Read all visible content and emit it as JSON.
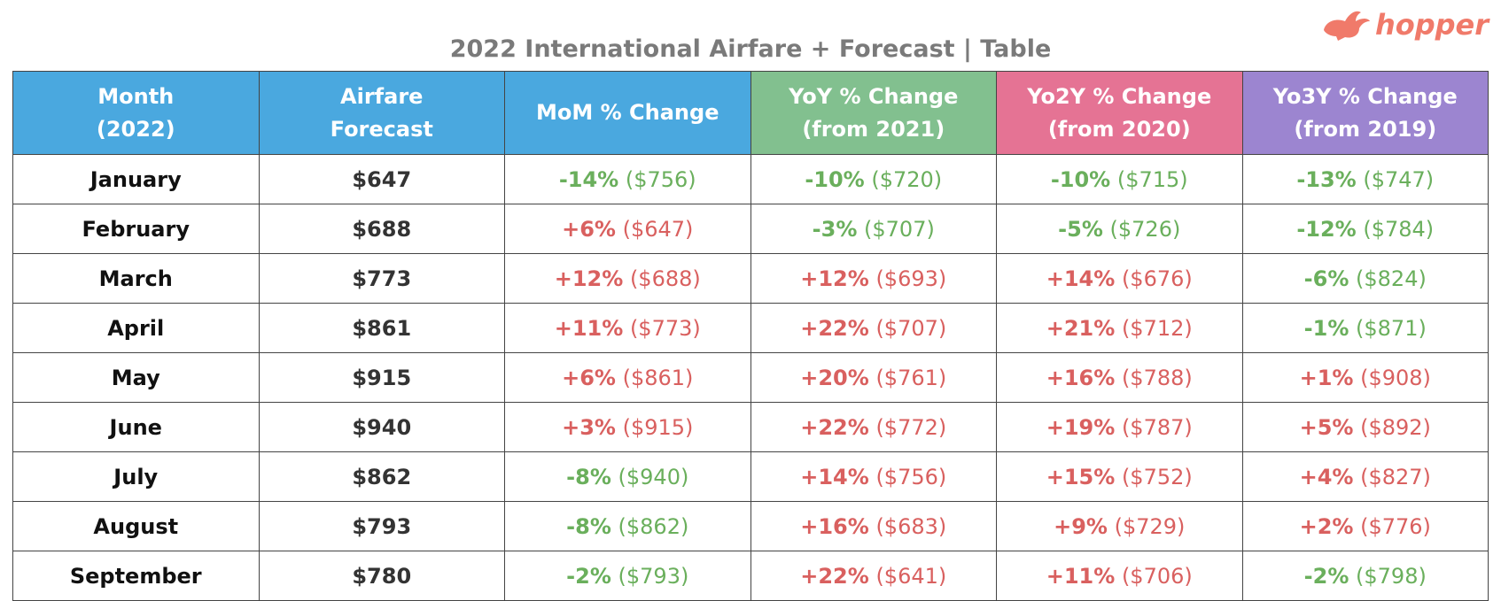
{
  "header": {
    "title": "2022 International Airfare + Forecast | Table",
    "logo": "hopper"
  },
  "table": {
    "columns": [
      {
        "lines": [
          "Month",
          "(2022)"
        ],
        "color": "#4aa8df"
      },
      {
        "lines": [
          "Airfare",
          "Forecast"
        ],
        "color": "#4aa8df"
      },
      {
        "lines": [
          "MoM % Change"
        ],
        "color": "#4aa8df"
      },
      {
        "lines": [
          "YoY % Change",
          "(from 2021)"
        ],
        "color": "#82c08f"
      },
      {
        "lines": [
          "Yo2Y % Change",
          "(from 2020)"
        ],
        "color": "#e57394"
      },
      {
        "lines": [
          "Yo3Y % Change",
          "(from 2019)"
        ],
        "color": "#9c85d0"
      }
    ],
    "rows": [
      {
        "month": "January",
        "forecast": "$647",
        "changes": [
          {
            "change": "-14%",
            "previous": "($756)"
          },
          {
            "change": "-10%",
            "previous": "($720)"
          },
          {
            "change": "-10%",
            "previous": "($715)"
          },
          {
            "change": "-13%",
            "previous": "($747)"
          }
        ]
      },
      {
        "month": "February",
        "forecast": "$688",
        "changes": [
          {
            "change": "+6%",
            "previous": "($647)"
          },
          {
            "change": "-3%",
            "previous": "($707)"
          },
          {
            "change": "-5%",
            "previous": "($726)"
          },
          {
            "change": "-12%",
            "previous": "($784)"
          }
        ]
      },
      {
        "month": "March",
        "forecast": "$773",
        "changes": [
          {
            "change": "+12%",
            "previous": "($688)"
          },
          {
            "change": "+12%",
            "previous": "($693)"
          },
          {
            "change": "+14%",
            "previous": "($676)"
          },
          {
            "change": "-6%",
            "previous": "($824)"
          }
        ]
      },
      {
        "month": "April",
        "forecast": "$861",
        "changes": [
          {
            "change": "+11%",
            "previous": "($773)"
          },
          {
            "change": "+22%",
            "previous": "($707)"
          },
          {
            "change": "+21%",
            "previous": "($712)"
          },
          {
            "change": "-1%",
            "previous": "($871)"
          }
        ]
      },
      {
        "month": "May",
        "forecast": "$915",
        "changes": [
          {
            "change": "+6%",
            "previous": "($861)"
          },
          {
            "change": "+20%",
            "previous": "($761)"
          },
          {
            "change": "+16%",
            "previous": "($788)"
          },
          {
            "change": "+1%",
            "previous": "($908)"
          }
        ]
      },
      {
        "month": "June",
        "forecast": "$940",
        "changes": [
          {
            "change": "+3%",
            "previous": "($915)"
          },
          {
            "change": "+22%",
            "previous": "($772)"
          },
          {
            "change": "+19%",
            "previous": "($787)"
          },
          {
            "change": "+5%",
            "previous": "($892)"
          }
        ]
      },
      {
        "month": "July",
        "forecast": "$862",
        "changes": [
          {
            "change": "-8%",
            "previous": "($940)"
          },
          {
            "change": "+14%",
            "previous": "($756)"
          },
          {
            "change": "+15%",
            "previous": "($752)"
          },
          {
            "change": "+4%",
            "previous": "($827)"
          }
        ]
      },
      {
        "month": "August",
        "forecast": "$793",
        "changes": [
          {
            "change": "-8%",
            "previous": "($862)"
          },
          {
            "change": "+16%",
            "previous": "($683)"
          },
          {
            "change": "+9%",
            "previous": "($729)"
          },
          {
            "change": "+2%",
            "previous": "($776)"
          }
        ]
      },
      {
        "month": "September",
        "forecast": "$780",
        "changes": [
          {
            "change": "-2%",
            "previous": "($793)"
          },
          {
            "change": "+22%",
            "previous": "($641)"
          },
          {
            "change": "+11%",
            "previous": "($706)"
          },
          {
            "change": "-2%",
            "previous": "($798)"
          }
        ]
      }
    ]
  }
}
